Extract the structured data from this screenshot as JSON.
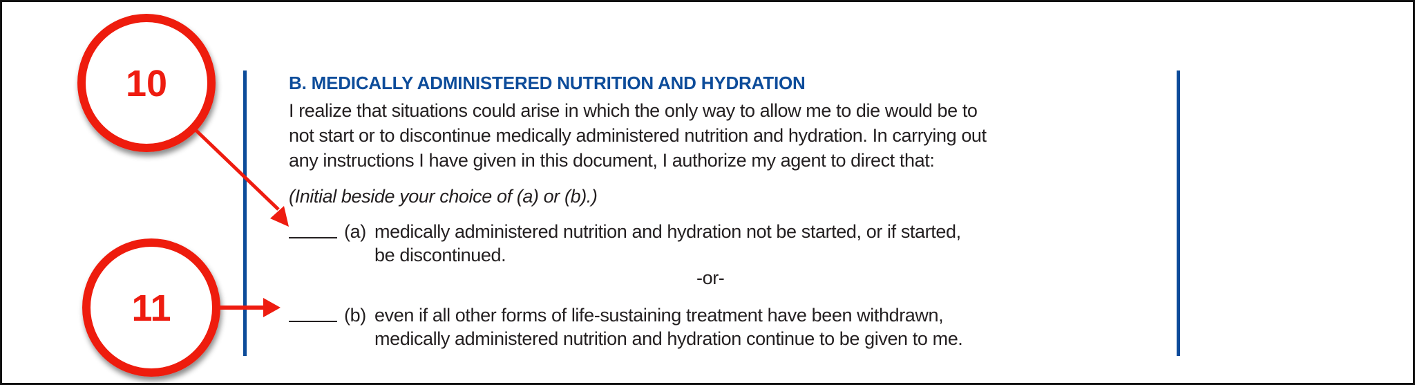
{
  "section": {
    "heading": "B. MEDICALLY ADMINISTERED NUTRITION AND HYDRATION",
    "paragraph_lines": [
      "I realize that situations could arise in which the only way to allow me to die would be to",
      "not start or to discontinue medically administered nutrition and hydration. In carrying out",
      "any instructions I have given in this document, I authorize my agent to direct that:"
    ],
    "instruction": "(Initial beside your choice of (a) or (b).)",
    "option_a": {
      "label": "(a)",
      "line1": "medically administered nutrition and hydration not be started, or if started,",
      "line2": "be discontinued."
    },
    "separator": "-or-",
    "option_b": {
      "label": "(b)",
      "line1": "even if all other forms of life-sustaining treatment have been withdrawn,",
      "line2": "medically administered nutrition and hydration continue to be given to me."
    }
  },
  "callouts": [
    {
      "number": "10",
      "points_to": "option_a"
    },
    {
      "number": "11",
      "points_to": "option_b"
    }
  ],
  "colors": {
    "heading_blue": "#0d4c9a",
    "callout_red": "#ee1c10",
    "text": "#231f20"
  }
}
